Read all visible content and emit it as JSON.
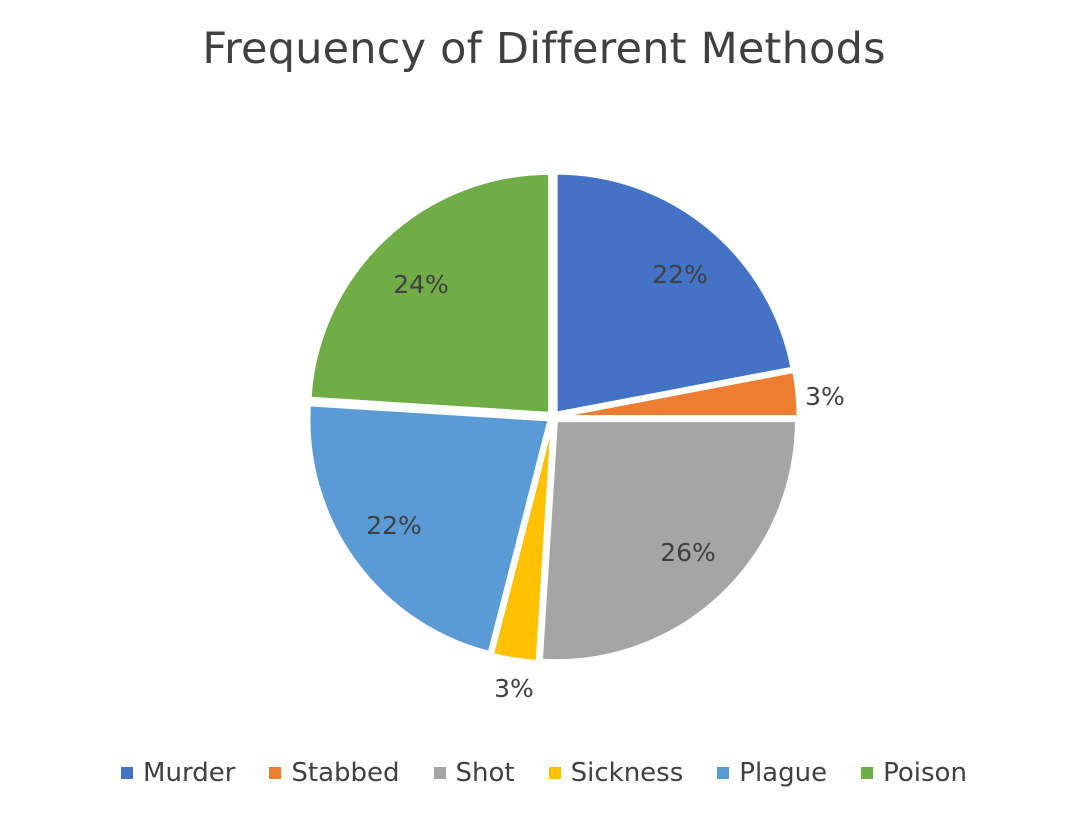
{
  "chart_data": {
    "type": "pie",
    "title": "Frequency of Different Methods",
    "legend_position": "bottom",
    "slices": [
      {
        "name": "Murder",
        "value": 22,
        "label": "22%",
        "color": "#4472C4"
      },
      {
        "name": "Stabbed",
        "value": 3,
        "label": "3%",
        "color": "#ED7D31"
      },
      {
        "name": "Shot",
        "value": 26,
        "label": "26%",
        "color": "#A5A5A5"
      },
      {
        "name": "Sickness",
        "value": 3,
        "label": "3%",
        "color": "#FFC000"
      },
      {
        "name": "Plague",
        "value": 22,
        "label": "22%",
        "color": "#5B9BD5"
      },
      {
        "name": "Poison",
        "value": 24,
        "label": "24%",
        "color": "#70AD47"
      }
    ]
  }
}
